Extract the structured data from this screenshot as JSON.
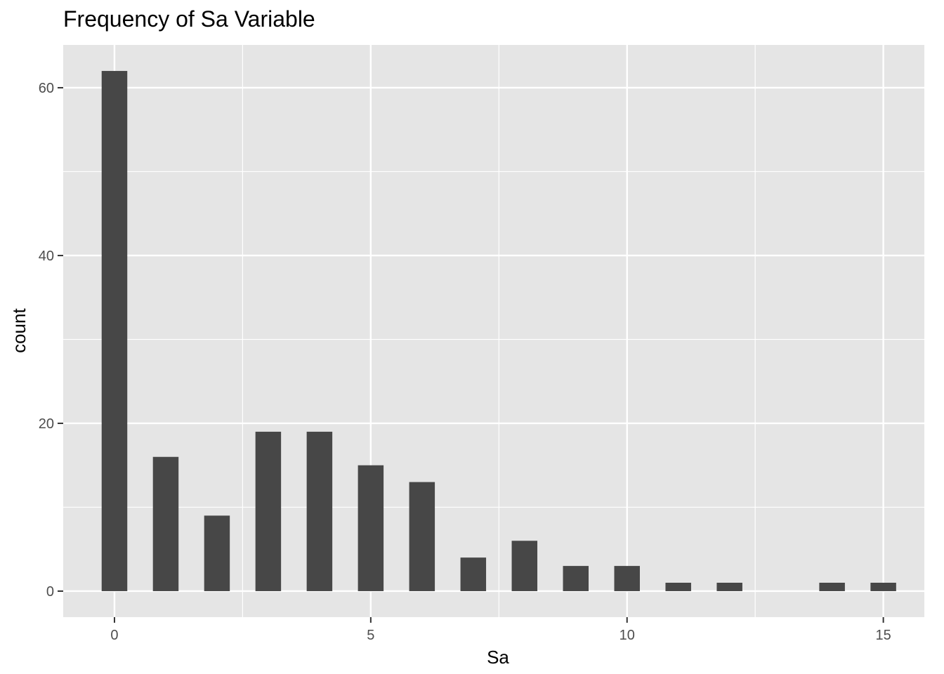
{
  "chart_data": {
    "type": "bar",
    "title": "Frequency of Sa Variable",
    "xlabel": "Sa",
    "ylabel": "count",
    "x": [
      0,
      1,
      2,
      3,
      4,
      5,
      6,
      7,
      8,
      9,
      10,
      11,
      12,
      14,
      15
    ],
    "values": [
      62,
      16,
      9,
      19,
      19,
      15,
      13,
      4,
      6,
      3,
      3,
      1,
      1,
      1,
      1
    ],
    "xlim": [
      -1.0,
      15.8
    ],
    "ylim": [
      -3.1,
      65.1
    ],
    "x_ticks": [
      0,
      5,
      10,
      15
    ],
    "x_minor": [
      2.5,
      7.5,
      12.5
    ],
    "y_ticks": [
      0,
      20,
      40,
      60
    ],
    "y_minor": [
      10,
      30,
      50
    ],
    "grid": true,
    "legend": "none",
    "colors": {
      "bar": "#474747",
      "panel": "#e5e5e5",
      "grid": "#ffffff",
      "tick": "#333333"
    }
  }
}
